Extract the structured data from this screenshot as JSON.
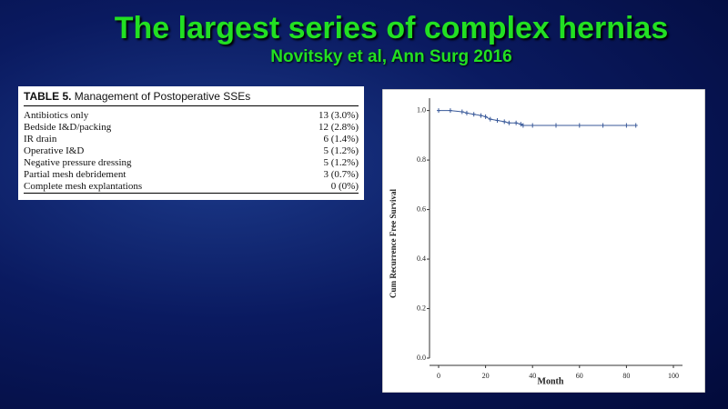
{
  "header": {
    "title": "The largest series of complex hernias",
    "subtitle": "Novitsky et al, Ann Surg 2016"
  },
  "table": {
    "label": "TABLE 5.",
    "title": "Management of Postoperative SSEs",
    "rows": [
      [
        "Antibiotics only",
        "13 (3.0%)"
      ],
      [
        "Bedside I&D/packing",
        "12 (2.8%)"
      ],
      [
        "IR drain",
        "6 (1.4%)"
      ],
      [
        "Operative I&D",
        "5 (1.2%)"
      ],
      [
        "Negative pressure dressing",
        "5 (1.2%)"
      ],
      [
        "Partial mesh debridement",
        "3 (0.7%)"
      ],
      [
        "Complete mesh explantations",
        "0 (0%)"
      ]
    ]
  },
  "chart_data": {
    "type": "line",
    "x_label": "Month",
    "y_label": "Cum Recurrence Free Survival",
    "x": [
      0,
      5,
      10,
      12,
      15,
      18,
      20,
      22,
      25,
      28,
      30,
      33,
      35,
      36,
      40,
      50,
      60,
      70,
      80,
      84
    ],
    "values": [
      1.0,
      1.0,
      0.995,
      0.99,
      0.985,
      0.98,
      0.975,
      0.965,
      0.96,
      0.955,
      0.95,
      0.95,
      0.945,
      0.94,
      0.94,
      0.94,
      0.94,
      0.94,
      0.94,
      0.94
    ],
    "color": "#3a5a9a",
    "xlim": [
      0,
      100
    ],
    "xticks": [
      0,
      20,
      40,
      60,
      80,
      100
    ],
    "ylim": [
      0,
      1.05
    ],
    "yticks": [
      {
        "value": 0,
        "label": "0.0"
      },
      0.2,
      0.4,
      0.6,
      0.8,
      {
        "value": 1,
        "label": "1.0"
      }
    ]
  }
}
